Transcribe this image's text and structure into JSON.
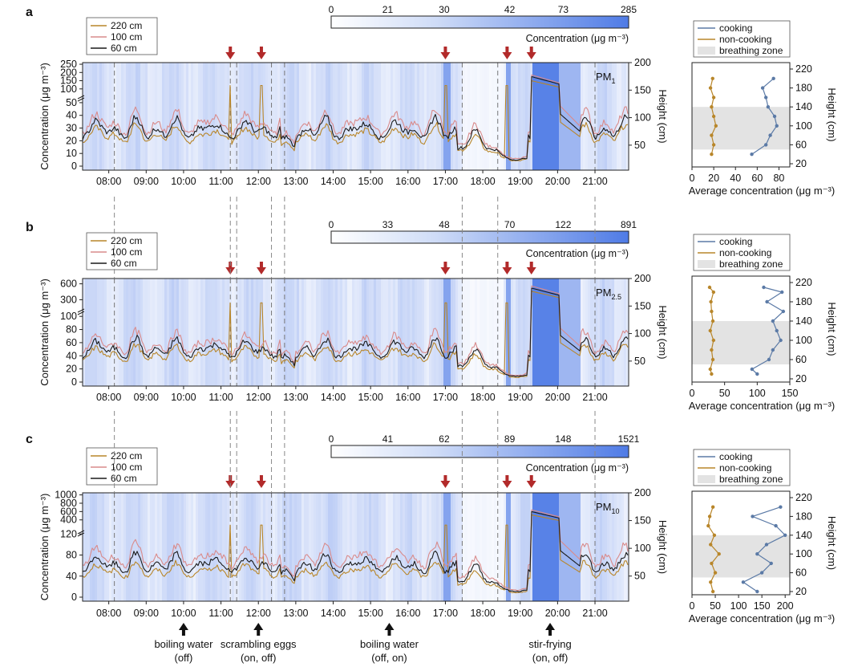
{
  "colors": {
    "cooking": "#5b7aa6",
    "noncooking": "#b8862a",
    "h220": "#b8862a",
    "h100": "#d98b8b",
    "h60": "#1a1a1a",
    "arrow": "#b22a2a",
    "heat_low": "#ffffff",
    "heat_high": "#4f7be6",
    "breathing": "#e3e3e3"
  },
  "legend_left": [
    "220 cm",
    "100 cm",
    "60 cm"
  ],
  "legend_right": [
    "cooking",
    "non-cooking",
    "breathing zone"
  ],
  "y_label": "Concentration (μg m⁻³)",
  "height_label": "Height (cm)",
  "profile_xlabel": "Average concentration (μg m⁻³)",
  "colorbar_label": "Concentration (μg m⁻³)",
  "time_ticks": [
    "08:00",
    "09:00",
    "10:00",
    "11:00",
    "12:00",
    "13:00",
    "14:00",
    "15:00",
    "16:00",
    "17:00",
    "18:00",
    "19:00",
    "20:00",
    "21:00"
  ],
  "height_ticks": [
    50,
    100,
    150,
    200
  ],
  "profile_height_ticks": [
    20,
    60,
    100,
    140,
    180,
    220
  ],
  "event_times": [
    11.25,
    12.08,
    17.0,
    18.65,
    19.3
  ],
  "dashed_times": [
    8.15,
    11.25,
    11.42,
    12.35,
    12.7,
    17.45,
    18.4,
    21.0
  ],
  "events": [
    {
      "time": 10.0,
      "name": "boiling water",
      "state": "(off)"
    },
    {
      "time": 12.0,
      "name": "scrambling eggs",
      "state": "(on, off)"
    },
    {
      "time": 15.5,
      "name": "boiling water",
      "state": "(off, on)"
    },
    {
      "time": 19.8,
      "name": "stir-frying",
      "state": "(on, off)"
    }
  ],
  "chart_data": [
    {
      "type": "line",
      "panel": "a",
      "species_main": "PM",
      "species_sub": "1",
      "colorbar_ticks": [
        "0",
        "21",
        "30",
        "42",
        "73",
        "285"
      ],
      "y_lower_ticks": [
        0,
        10,
        20,
        30,
        40,
        50
      ],
      "y_upper_ticks": [
        100,
        150,
        200,
        250
      ],
      "y_lower_max": 55,
      "y_upper_range": [
        55,
        260
      ],
      "base": {
        "h220": 22,
        "h100": 30,
        "h60": 26
      },
      "cook_peak": {
        "h220": 150,
        "h100": 185,
        "h60": 175
      },
      "profile": {
        "xticks": [
          0,
          20,
          40,
          60,
          80
        ],
        "xmax": 90,
        "heights": [
          40,
          60,
          80,
          100,
          120,
          140,
          160,
          180,
          200
        ],
        "cooking": [
          55,
          68,
          72,
          78,
          76,
          70,
          68,
          65,
          75
        ],
        "noncooking": [
          18,
          20,
          18,
          22,
          20,
          18,
          20,
          17,
          19
        ]
      }
    },
    {
      "type": "line",
      "panel": "b",
      "species_main": "PM",
      "species_sub": "2.5",
      "colorbar_ticks": [
        "0",
        "33",
        "48",
        "70",
        "122",
        "891"
      ],
      "y_lower_ticks": [
        0,
        20,
        40,
        60,
        80,
        100
      ],
      "y_upper_ticks": [
        300,
        600
      ],
      "y_lower_max": 110,
      "y_upper_range": [
        110,
        700
      ],
      "base": {
        "h220": 38,
        "h100": 52,
        "h60": 45
      },
      "cook_peak": {
        "h220": 460,
        "h100": 560,
        "h60": 520
      },
      "profile": {
        "xticks": [
          0,
          50,
          100,
          150
        ],
        "xmax": 150,
        "heights": [
          30,
          40,
          60,
          80,
          100,
          120,
          140,
          160,
          180,
          200,
          210
        ],
        "cooking": [
          100,
          92,
          118,
          124,
          136,
          130,
          124,
          140,
          115,
          138,
          110
        ],
        "noncooking": [
          30,
          28,
          32,
          30,
          33,
          28,
          32,
          30,
          29,
          33,
          27
        ]
      }
    },
    {
      "type": "line",
      "panel": "c",
      "species_main": "PM",
      "species_sub": "10",
      "colorbar_ticks": [
        "0",
        "41",
        "62",
        "89",
        "148",
        "1521"
      ],
      "y_lower_ticks": [
        0,
        40,
        80,
        120
      ],
      "y_upper_ticks": [
        400,
        600,
        800,
        1000
      ],
      "y_lower_max": 125,
      "y_upper_range": [
        125,
        1050
      ],
      "base": {
        "h220": 45,
        "h100": 68,
        "h60": 56
      },
      "cook_peak": {
        "h220": 520,
        "h100": 640,
        "h60": 600
      },
      "profile": {
        "xticks": [
          0,
          50,
          100,
          150,
          200
        ],
        "xmax": 210,
        "heights": [
          20,
          40,
          60,
          80,
          100,
          120,
          140,
          160,
          180,
          200
        ],
        "cooking": [
          140,
          110,
          150,
          170,
          140,
          160,
          200,
          180,
          130,
          190
        ],
        "noncooking": [
          45,
          40,
          50,
          42,
          58,
          40,
          48,
          35,
          38,
          45
        ]
      }
    }
  ],
  "panel_letters": [
    "a",
    "b",
    "c"
  ]
}
